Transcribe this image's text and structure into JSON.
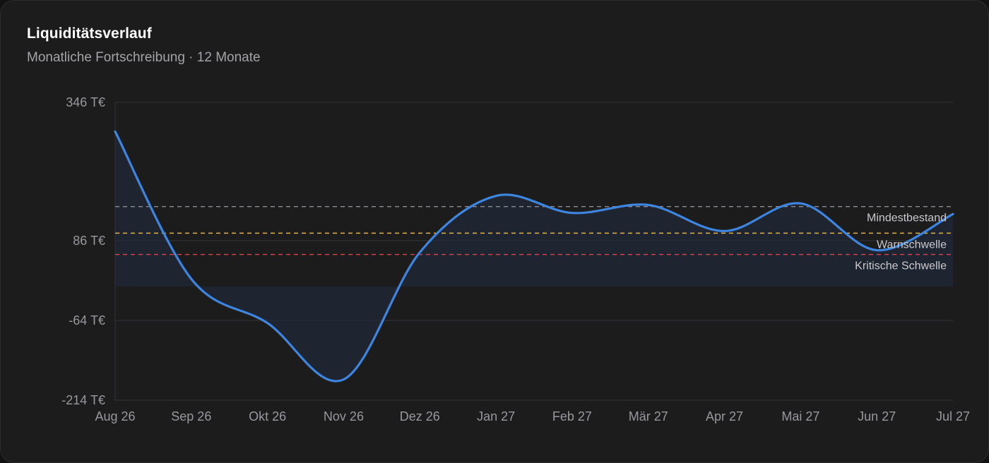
{
  "header": {
    "title": "Liquiditätsverlauf",
    "subtitle": "Monatliche Fortschreibung · 12 Monate"
  },
  "colors": {
    "line": "#3d85de",
    "grid": "#34343a",
    "mindestbestand": "#8c8c92",
    "warnschwelle": "#e3b341",
    "kritisch": "#d9434e",
    "area": "#1f2a3a"
  },
  "chart_data": {
    "type": "line",
    "title": "Liquiditätsverlauf",
    "subtitle": "Monatliche Fortschreibung · 12 Monate",
    "unit": "T€",
    "categories": [
      "Aug 26",
      "Sep 26",
      "Okt 26",
      "Nov 26",
      "Dez 26",
      "Jan 27",
      "Feb 27",
      "Mär 27",
      "Apr 27",
      "Mai 27",
      "Jun 27",
      "Jul 27"
    ],
    "series": [
      {
        "values": [
          291,
          14,
          -69,
          -175,
          64,
          170,
          138,
          153,
          104,
          156,
          68,
          136
        ]
      }
    ],
    "y_ticks": [
      {
        "value": 346,
        "label": "346 T€"
      },
      {
        "value": 86,
        "label": "86 T€"
      },
      {
        "value": -64,
        "label": "-64 T€"
      },
      {
        "value": -214,
        "label": "-214 T€"
      }
    ],
    "ylim": [
      -214,
      346
    ],
    "area_baseline": 0,
    "thresholds": [
      {
        "name": "Mindestbestand",
        "value": 150,
        "color": "#8c8c92"
      },
      {
        "name": "Warnschwelle",
        "value": 100,
        "color": "#e3b341"
      },
      {
        "name": "Kritische Schwelle",
        "value": 60,
        "color": "#d9434e"
      }
    ],
    "grid": true,
    "legend": "none"
  }
}
